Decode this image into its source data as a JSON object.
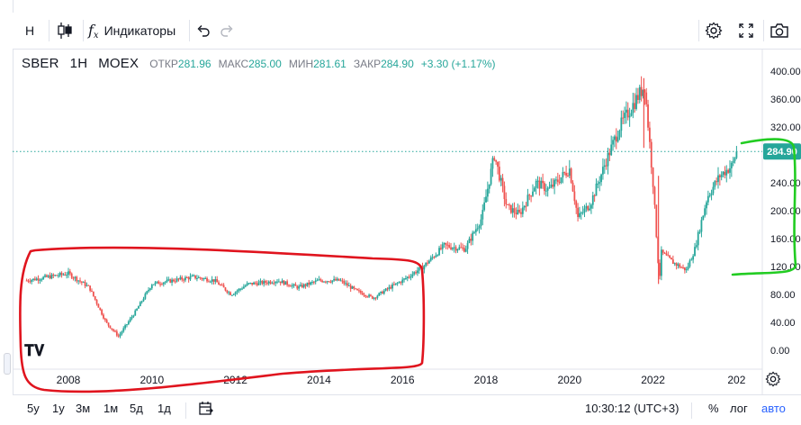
{
  "toolbar": {
    "interval": "Н",
    "indicators_label": "Индикаторы"
  },
  "legend": {
    "symbol": "SBER",
    "interval": "1Н",
    "exchange": "MOEX",
    "open_label": "ОТКР",
    "open_value": "281.96",
    "high_label": "МАКС",
    "high_value": "285.00",
    "low_label": "МИН",
    "low_value": "281.61",
    "close_label": "ЗАКР",
    "close_value": "284.90",
    "change": "+3.30 (+1.17%)"
  },
  "price_axis": {
    "labels": [
      "400.00",
      "360.00",
      "320.00",
      "280.00",
      "240.00",
      "200.00",
      "160.00",
      "120.00",
      "80.00",
      "40.00",
      "0.00"
    ],
    "last_price_label": "284.90"
  },
  "time_axis": {
    "labels": [
      "2008",
      "2010",
      "2012",
      "2014",
      "2016",
      "2018",
      "2020",
      "2022",
      "202"
    ]
  },
  "bottom": {
    "ranges": [
      "5y",
      "1y",
      "3м",
      "1м",
      "5д",
      "1д"
    ],
    "time": "10:30:12 (UTC+3)",
    "percent": "%",
    "log": "лог",
    "auto": "авто"
  },
  "colors": {
    "up": "#26a69a",
    "down": "#ef5350",
    "annotation_red": "#e0141e",
    "annotation_green": "#22cc22",
    "last_price": "#26a69a"
  },
  "chart_data": {
    "type": "candlestick",
    "symbol": "SBER",
    "exchange": "MOEX",
    "x": [
      2007.0,
      2007.5,
      2008.0,
      2008.5,
      2008.9,
      2009.2,
      2009.6,
      2010.0,
      2010.5,
      2011.0,
      2011.5,
      2011.9,
      2012.3,
      2012.7,
      2013.0,
      2013.5,
      2014.0,
      2014.5,
      2014.9,
      2015.3,
      2015.7,
      2016.0,
      2016.5,
      2017.0,
      2017.5,
      2017.9,
      2018.2,
      2018.5,
      2018.8,
      2019.2,
      2019.5,
      2020.0,
      2020.2,
      2020.5,
      2020.9,
      2021.2,
      2021.5,
      2021.8,
      2022.0,
      2022.15,
      2022.2,
      2022.5,
      2022.8,
      2023.0,
      2023.3,
      2023.6,
      2023.9,
      2024.0
    ],
    "values": [
      100,
      105,
      110,
      90,
      40,
      20,
      55,
      95,
      100,
      105,
      100,
      80,
      95,
      97,
      100,
      90,
      100,
      100,
      85,
      75,
      90,
      100,
      120,
      150,
      145,
      190,
      280,
      205,
      195,
      240,
      230,
      260,
      190,
      210,
      275,
      320,
      350,
      380,
      240,
      100,
      140,
      125,
      115,
      145,
      220,
      250,
      265,
      284.9
    ],
    "ylim": [
      0,
      420
    ],
    "xlim": [
      2006.75,
      2024.05
    ],
    "last_price": 284.9
  }
}
